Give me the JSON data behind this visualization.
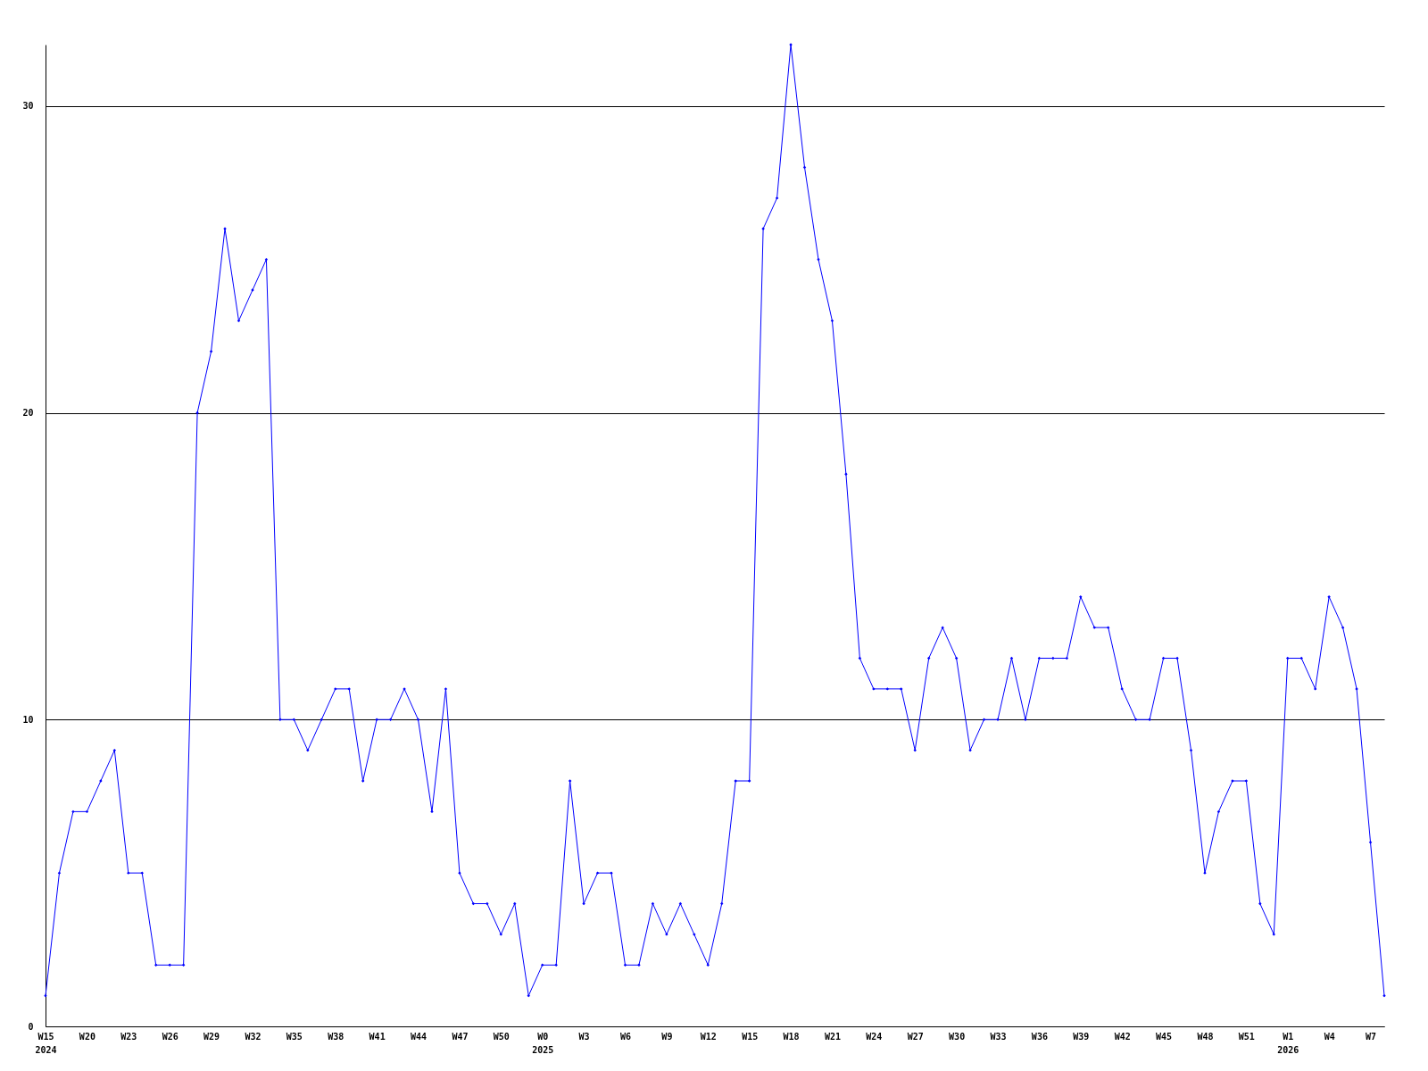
{
  "chart_data": {
    "type": "line",
    "categories": [
      "W15",
      null,
      null,
      "W20",
      null,
      null,
      "W23",
      null,
      null,
      "W26",
      null,
      null,
      "W29",
      null,
      null,
      "W32",
      null,
      null,
      "W35",
      null,
      null,
      "W38",
      null,
      null,
      "W41",
      null,
      null,
      "W44",
      null,
      null,
      "W47",
      null,
      null,
      "W50",
      null,
      null,
      "W0",
      null,
      null,
      "W3",
      null,
      null,
      "W6",
      null,
      null,
      "W9",
      null,
      null,
      "W12",
      null,
      null,
      "W15",
      null,
      null,
      "W18",
      null,
      null,
      "W21",
      null,
      null,
      "W24",
      null,
      null,
      "W27",
      null,
      null,
      "W30",
      null,
      null,
      "W33",
      null,
      null,
      "W36",
      null,
      null,
      "W39",
      null,
      null,
      "W42",
      null,
      null,
      "W45",
      null,
      null,
      "W48",
      null,
      null,
      "W51",
      null,
      null,
      "W1",
      null,
      null,
      "W4",
      null,
      null,
      "W7",
      null
    ],
    "series": [
      {
        "color": "#0000ff",
        "values": [
          1,
          5,
          7,
          7,
          8,
          9,
          5,
          5,
          2,
          2,
          2,
          20,
          22,
          26,
          23,
          24,
          25,
          10,
          10,
          9,
          10,
          11,
          11,
          8,
          10,
          10,
          11,
          10,
          7,
          11,
          5,
          4,
          4,
          3,
          4,
          1,
          2,
          2,
          8,
          4,
          5,
          5,
          2,
          2,
          4,
          3,
          4,
          3,
          2,
          4,
          8,
          8,
          26,
          27,
          32,
          28,
          25,
          23,
          18,
          12,
          11,
          11,
          11,
          9,
          12,
          13,
          12,
          9,
          10,
          10,
          12,
          10,
          12,
          12,
          12,
          14,
          13,
          13,
          11,
          10,
          10,
          12,
          12,
          9,
          5,
          7,
          8,
          8,
          4,
          3,
          12,
          12,
          11,
          14,
          13,
          11,
          6,
          1
        ]
      }
    ],
    "ylim": [
      0,
      32
    ],
    "yticks": [
      0,
      10,
      20,
      30
    ],
    "grid": "y",
    "marker": "diamond",
    "line_style": "solid",
    "annotations": [
      "2024",
      "2025",
      "2026"
    ]
  }
}
